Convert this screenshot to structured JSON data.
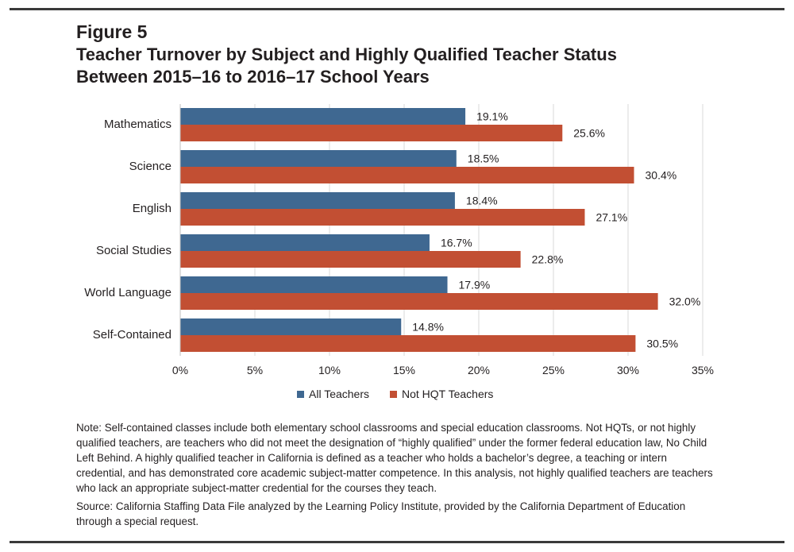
{
  "figure": {
    "label": "Figure 5",
    "title_lines": [
      "Teacher Turnover by Subject and Highly Qualified Teacher Status",
      "Between 2015–16 to 2016–17 School Years"
    ]
  },
  "chart_data": {
    "type": "bar",
    "orientation": "horizontal",
    "categories": [
      "Mathematics",
      "Science",
      "English",
      "Social Studies",
      "World Language",
      "Self-Contained"
    ],
    "series": [
      {
        "name": "All Teachers",
        "color": "#3f6891",
        "values": [
          19.1,
          18.5,
          18.4,
          16.7,
          17.9,
          14.8
        ],
        "labels": [
          "19.1%",
          "18.5%",
          "18.4%",
          "16.7%",
          "17.9%",
          "14.8%"
        ]
      },
      {
        "name": "Not HQT Teachers",
        "color": "#c24f33",
        "values": [
          25.6,
          30.4,
          27.1,
          22.8,
          32.0,
          30.5
        ],
        "labels": [
          "25.6%",
          "30.4%",
          "27.1%",
          "22.8%",
          "32.0%",
          "30.5%"
        ]
      }
    ],
    "xlim": [
      0,
      35
    ],
    "xticks": [
      "0%",
      "5%",
      "10%",
      "15%",
      "20%",
      "25%",
      "30%",
      "35%"
    ],
    "xlabel": "",
    "ylabel": "",
    "grid": "vertical",
    "legend_position": "bottom"
  },
  "note": "Note: Self-contained classes include both elementary school classrooms and special education classrooms. Not HQTs, or not highly qualified teachers, are teachers who did not meet the designation of “highly qualified” under the former federal education law, No Child Left Behind. A highly qualified teacher in California is defined as a teacher who holds a bachelor’s degree, a teaching or intern credential, and has demonstrated core academic subject-matter competence. In this analysis, not highly qualified teachers are teachers who lack an appropriate subject-matter credential for the courses they teach.",
  "source": "Source: California Staffing Data File analyzed by the Learning Policy Institute, provided by the California Department of Education through a special request."
}
